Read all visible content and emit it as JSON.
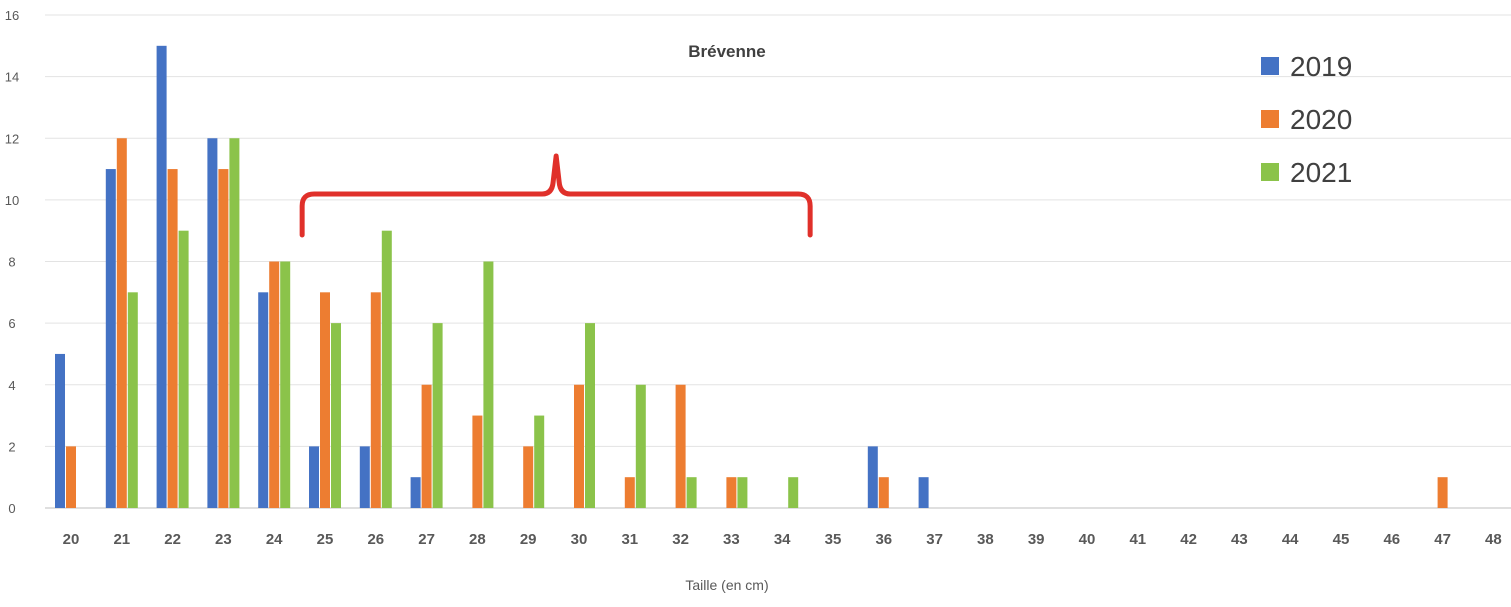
{
  "chart_data": {
    "type": "bar",
    "title": "Brévenne",
    "xlabel": "Taille (en cm)",
    "ylabel": "",
    "ylim": [
      0,
      16
    ],
    "yticks": [
      0,
      2,
      4,
      6,
      8,
      10,
      12,
      14,
      16
    ],
    "grid": true,
    "legend_position": "top-right",
    "categories": [
      "20",
      "21",
      "22",
      "23",
      "24",
      "25",
      "26",
      "27",
      "28",
      "29",
      "30",
      "31",
      "32",
      "33",
      "34",
      "35",
      "36",
      "37",
      "38",
      "39",
      "40",
      "41",
      "42",
      "43",
      "44",
      "45",
      "46",
      "47",
      "48"
    ],
    "series": [
      {
        "name": "2019",
        "color": "#4472C4",
        "values": [
          5,
          11,
          15,
          12,
          7,
          2,
          2,
          1,
          0,
          0,
          0,
          0,
          0,
          0,
          0,
          0,
          2,
          1,
          0,
          0,
          0,
          0,
          0,
          0,
          0,
          0,
          0,
          0,
          0
        ]
      },
      {
        "name": "2020",
        "color": "#ED7D31",
        "values": [
          2,
          12,
          11,
          11,
          8,
          7,
          7,
          4,
          3,
          2,
          4,
          1,
          4,
          1,
          0,
          0,
          1,
          0,
          0,
          0,
          0,
          0,
          0,
          0,
          0,
          0,
          0,
          1,
          0
        ]
      },
      {
        "name": "2021",
        "color": "#8BC34A",
        "values": [
          0,
          7,
          9,
          12,
          8,
          6,
          9,
          6,
          8,
          3,
          6,
          4,
          1,
          1,
          1,
          0,
          0,
          0,
          0,
          0,
          0,
          0,
          0,
          0,
          0,
          0,
          0,
          0,
          0
        ]
      }
    ],
    "annotations": [
      {
        "type": "brace",
        "color": "#E0302A",
        "x_range": [
          "24",
          "34"
        ]
      }
    ]
  }
}
